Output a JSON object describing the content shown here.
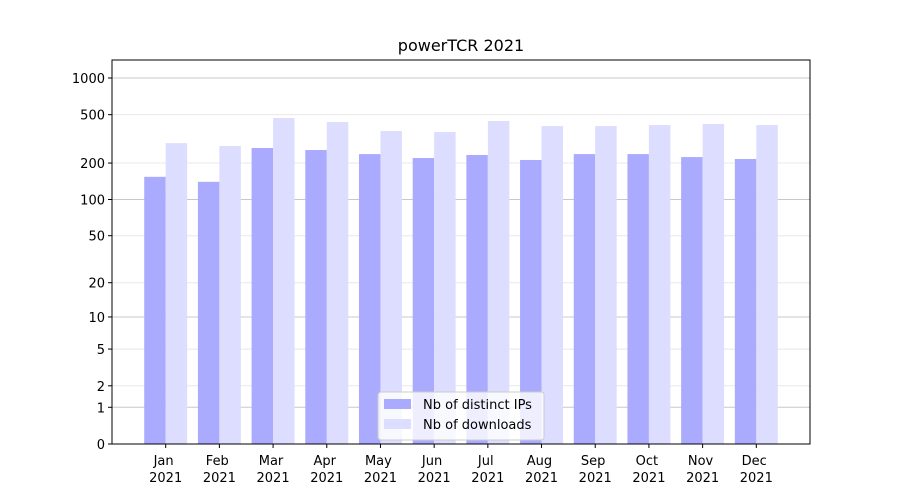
{
  "chart_data": {
    "type": "bar",
    "title": "powerTCR 2021",
    "categories": [
      "Jan 2021",
      "Feb 2021",
      "Mar 2021",
      "Apr 2021",
      "May 2021",
      "Jun 2021",
      "Jul 2021",
      "Aug 2021",
      "Sep 2021",
      "Oct 2021",
      "Nov 2021",
      "Dec 2021"
    ],
    "series": [
      {
        "name": "Nb of distinct IPs",
        "color": "#aaaaff",
        "values": [
          154,
          140,
          266,
          256,
          237,
          220,
          233,
          212,
          237,
          237,
          224,
          216
        ]
      },
      {
        "name": "Nb of downloads",
        "color": "#ddddff",
        "values": [
          292,
          276,
          469,
          435,
          367,
          360,
          444,
          403,
          403,
          411,
          419,
          411
        ]
      }
    ],
    "yscale": "symlog",
    "ylim": [
      0,
      1405
    ],
    "yticks": [
      0,
      1,
      2,
      5,
      10,
      20,
      50,
      100,
      200,
      500,
      1000
    ],
    "grid": true,
    "legend": "lower center"
  }
}
